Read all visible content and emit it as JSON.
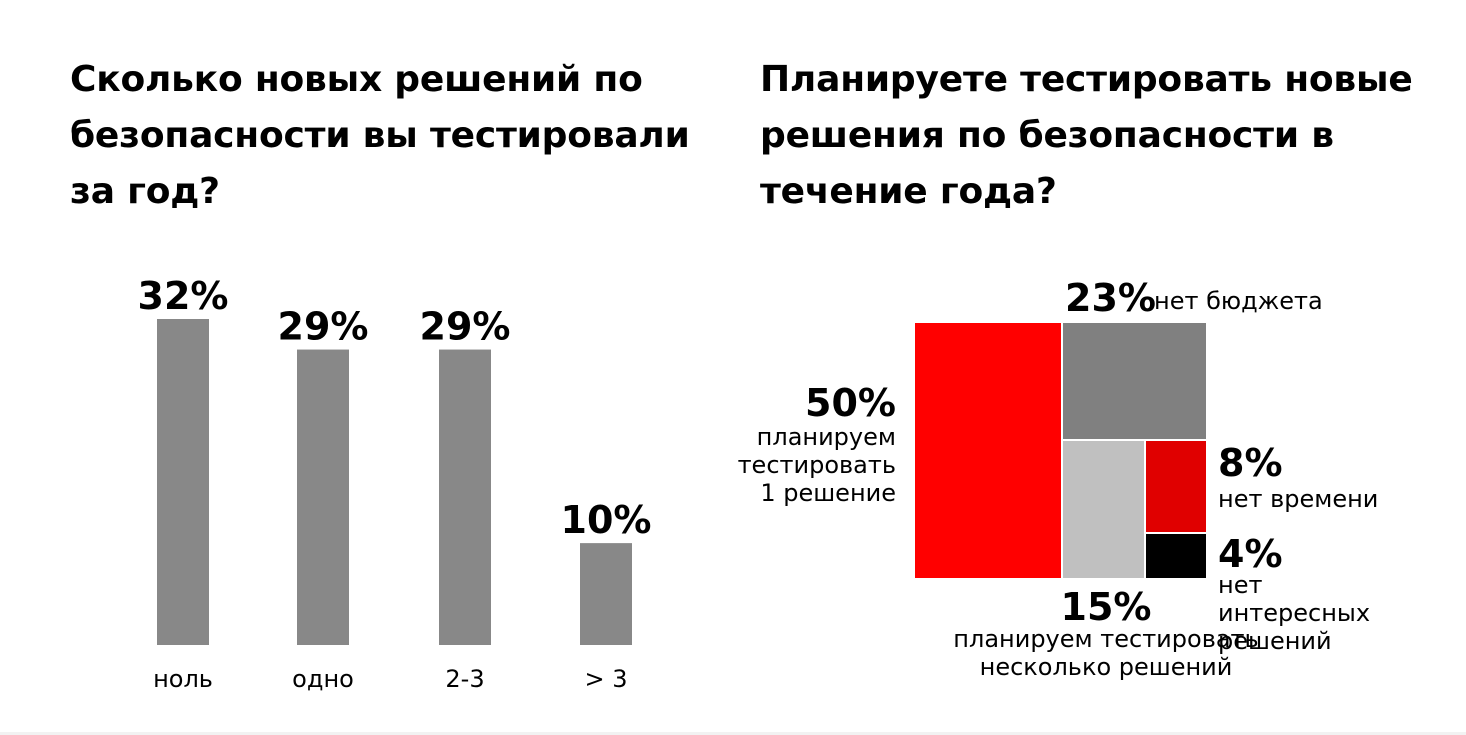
{
  "left_chart": {
    "title_lines": [
      "Сколько новых решений по",
      "безопасности вы тестировали",
      "за год?"
    ],
    "bar_color": "#888888"
  },
  "right_chart": {
    "title_lines": [
      "Планируете тестировать новые",
      "решения по безопасности в",
      "течение года?"
    ]
  },
  "chart_data": [
    {
      "type": "bar",
      "categories": [
        "ноль",
        "одно",
        "2-3",
        "> 3"
      ],
      "values": [
        32,
        29,
        29,
        10
      ],
      "value_labels": [
        "32%",
        "29%",
        "29%",
        "10%"
      ],
      "ylim": [
        0,
        32
      ],
      "grid": false,
      "legend": "none"
    },
    {
      "type": "treemap",
      "items": [
        {
          "value": 50,
          "value_label": "50%",
          "label_lines": [
            "планируем",
            "тестировать",
            "1 решение"
          ],
          "color": "#ff0000"
        },
        {
          "value": 23,
          "value_label": "23%",
          "label_lines": [
            "нет бюджета"
          ],
          "color": "#808080"
        },
        {
          "value": 15,
          "value_label": "15%",
          "label_lines": [
            "планируем тестировать",
            "несколько решений"
          ],
          "color": "#c0c0c0"
        },
        {
          "value": 8,
          "value_label": "8%",
          "label_lines": [
            "нет времени"
          ],
          "color": "#e00000"
        },
        {
          "value": 4,
          "value_label": "4%",
          "label_lines": [
            "нет",
            "интересных",
            "решений"
          ],
          "color": "#000000"
        }
      ]
    }
  ]
}
